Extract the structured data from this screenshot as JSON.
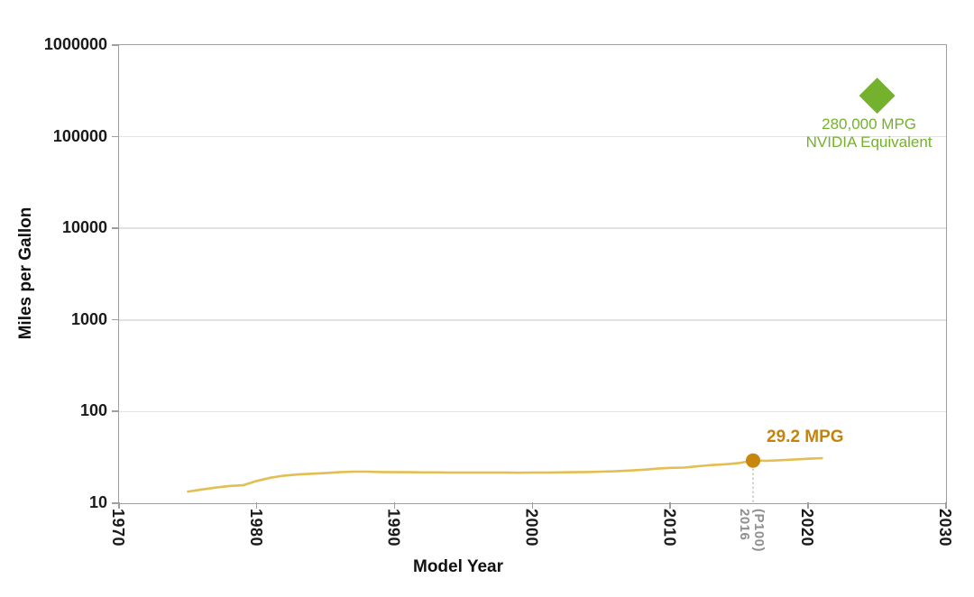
{
  "colors": {
    "line_gold": "#e3be52",
    "marker_orange": "#c8860d",
    "label_orange": "#c5830b",
    "nvidia_green": "#74b12d",
    "frame_gray": "#9e9e9e",
    "gridline_gray": "#e2e2e2",
    "muted_tick_gray": "#8f8f8f",
    "dashed_gray": "#a8a8a8"
  },
  "chart_data": {
    "type": "line",
    "title": "",
    "xlabel": "Model Year",
    "ylabel": "Miles per Gallon",
    "x_axis": {
      "min": 1970,
      "max": 2030,
      "tick_labels": [
        "1970",
        "1980",
        "1990",
        "2000",
        "2010",
        "2020",
        "2030"
      ]
    },
    "y_axis": {
      "scale": "log",
      "min": 10,
      "max": 1000000,
      "tick_labels": [
        "10",
        "100",
        "1000",
        "10000",
        "100000",
        "1000000"
      ]
    },
    "grid": "horizontal gridlines at each decade of the log y-axis",
    "legend": "none",
    "series": [
      {
        "x": [
          1975,
          1976,
          1977,
          1978,
          1979,
          1980,
          1981,
          1982,
          1983,
          1984,
          1985,
          1986,
          1987,
          1988,
          1989,
          1990,
          1991,
          1992,
          1993,
          1994,
          1995,
          1996,
          1997,
          1998,
          1999,
          2000,
          2001,
          2002,
          2003,
          2004,
          2005,
          2006,
          2007,
          2008,
          2009,
          2010,
          2011,
          2012,
          2013,
          2014,
          2015,
          2016,
          2017,
          2018,
          2019,
          2020,
          2021
        ],
        "y": [
          13.4,
          14.1,
          14.8,
          15.4,
          15.7,
          17.5,
          19.0,
          20.0,
          20.6,
          21.0,
          21.3,
          21.8,
          22.1,
          22.1,
          21.9,
          21.8,
          21.8,
          21.7,
          21.7,
          21.6,
          21.6,
          21.6,
          21.6,
          21.6,
          21.5,
          21.6,
          21.6,
          21.7,
          21.8,
          21.9,
          22.1,
          22.3,
          22.7,
          23.2,
          23.8,
          24.3,
          24.5,
          25.3,
          26.1,
          26.6,
          27.5,
          29.2,
          29.0,
          29.5,
          30.0,
          30.6,
          31.0
        ]
      }
    ],
    "highlight_point": {
      "x": 2016,
      "y": 29.2,
      "label": "29.2 MPG",
      "axis_label_line1": "2016",
      "axis_label_line2": "(P100)"
    },
    "special_point": {
      "x": 2025,
      "y": 280000,
      "marker": "diamond",
      "label_line1": "280,000 MPG",
      "label_line2": "NVIDIA Equivalent"
    }
  }
}
